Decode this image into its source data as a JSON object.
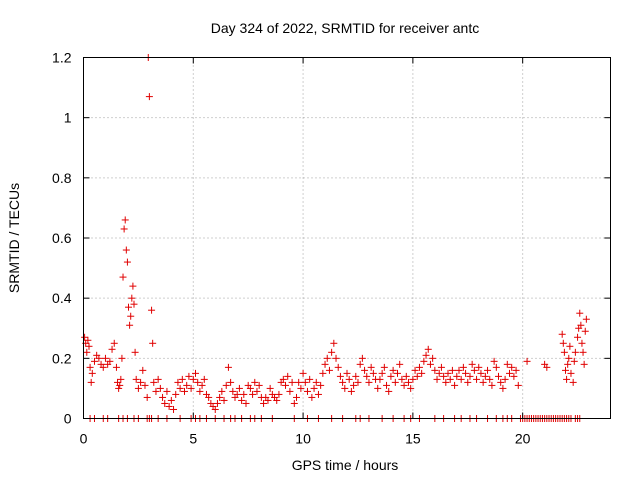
{
  "chart_data": {
    "type": "scatter",
    "title": "Day 324 of 2022, SRMTID for receiver antc",
    "xlabel": "GPS time / hours",
    "ylabel": "SRMTID / TECUs",
    "xlim": [
      0,
      24
    ],
    "ylim": [
      0,
      1.2
    ],
    "xticks": [
      0,
      5,
      10,
      15,
      20
    ],
    "xtick_labels": [
      "0",
      "5",
      "10",
      "15",
      "20"
    ],
    "yticks": [
      0,
      0.2,
      0.4,
      0.6,
      0.8,
      1.0,
      1.2
    ],
    "ytick_labels": [
      "0",
      "0.2",
      "0.4",
      "0.6",
      "0.8",
      "1",
      "1.2"
    ],
    "grid": true,
    "marker": "+",
    "color": "#e00000",
    "series": [
      {
        "name": "SRMTID",
        "points": [
          [
            0.05,
            0.27
          ],
          [
            0.1,
            0.25
          ],
          [
            0.15,
            0.22
          ],
          [
            0.2,
            0.26
          ],
          [
            0.25,
            0.24
          ],
          [
            0.3,
            0.17
          ],
          [
            0.35,
            0.12
          ],
          [
            0.4,
            0.15
          ],
          [
            0.5,
            0.19
          ],
          [
            0.6,
            0.21
          ],
          [
            0.7,
            0.2
          ],
          [
            0.8,
            0.18
          ],
          [
            0.9,
            0.17
          ],
          [
            1.0,
            0.2
          ],
          [
            1.1,
            0.18
          ],
          [
            1.2,
            0.19
          ],
          [
            1.3,
            0.23
          ],
          [
            1.4,
            0.25
          ],
          [
            1.5,
            0.17
          ],
          [
            1.55,
            0.12
          ],
          [
            1.6,
            0.1
          ],
          [
            1.65,
            0.11
          ],
          [
            1.7,
            0.13
          ],
          [
            1.75,
            0.2
          ],
          [
            1.8,
            0.47
          ],
          [
            1.85,
            0.63
          ],
          [
            1.9,
            0.66
          ],
          [
            1.95,
            0.56
          ],
          [
            2.0,
            0.52
          ],
          [
            2.05,
            0.37
          ],
          [
            2.1,
            0.31
          ],
          [
            2.15,
            0.34
          ],
          [
            2.2,
            0.4
          ],
          [
            2.25,
            0.44
          ],
          [
            2.3,
            0.38
          ],
          [
            2.35,
            0.22
          ],
          [
            2.4,
            0.13
          ],
          [
            2.5,
            0.1
          ],
          [
            2.6,
            0.12
          ],
          [
            2.7,
            0.16
          ],
          [
            2.8,
            0.11
          ],
          [
            2.9,
            0.07
          ],
          [
            2.95,
            1.2
          ],
          [
            3.0,
            1.07
          ],
          [
            3.1,
            0.36
          ],
          [
            3.15,
            0.25
          ],
          [
            3.2,
            0.12
          ],
          [
            3.3,
            0.09
          ],
          [
            3.4,
            0.13
          ],
          [
            3.5,
            0.1
          ],
          [
            3.6,
            0.07
          ],
          [
            3.7,
            0.05
          ],
          [
            3.8,
            0.09
          ],
          [
            3.9,
            0.04
          ],
          [
            4.0,
            0.06
          ],
          [
            4.1,
            0.03
          ],
          [
            4.2,
            0.08
          ],
          [
            4.3,
            0.12
          ],
          [
            4.4,
            0.1
          ],
          [
            4.5,
            0.13
          ],
          [
            4.6,
            0.09
          ],
          [
            4.7,
            0.11
          ],
          [
            4.8,
            0.14
          ],
          [
            4.9,
            0.1
          ],
          [
            5.0,
            0.13
          ],
          [
            5.1,
            0.15
          ],
          [
            5.2,
            0.12
          ],
          [
            5.3,
            0.09
          ],
          [
            5.4,
            0.11
          ],
          [
            5.5,
            0.13
          ],
          [
            5.6,
            0.08
          ],
          [
            5.7,
            0.07
          ],
          [
            5.8,
            0.05
          ],
          [
            5.9,
            0.04
          ],
          [
            6.0,
            0.03
          ],
          [
            6.1,
            0.05
          ],
          [
            6.2,
            0.07
          ],
          [
            6.3,
            0.09
          ],
          [
            6.4,
            0.06
          ],
          [
            6.5,
            0.11
          ],
          [
            6.6,
            0.17
          ],
          [
            6.7,
            0.12
          ],
          [
            6.8,
            0.09
          ],
          [
            6.9,
            0.07
          ],
          [
            7.0,
            0.08
          ],
          [
            7.1,
            0.1
          ],
          [
            7.2,
            0.06
          ],
          [
            7.3,
            0.08
          ],
          [
            7.4,
            0.05
          ],
          [
            7.5,
            0.11
          ],
          [
            7.6,
            0.1
          ],
          [
            7.7,
            0.08
          ],
          [
            7.8,
            0.12
          ],
          [
            7.9,
            0.09
          ],
          [
            8.0,
            0.11
          ],
          [
            8.1,
            0.07
          ],
          [
            8.2,
            0.05
          ],
          [
            8.3,
            0.07
          ],
          [
            8.4,
            0.06
          ],
          [
            8.5,
            0.1
          ],
          [
            8.6,
            0.08
          ],
          [
            8.7,
            0.07
          ],
          [
            8.8,
            0.06
          ],
          [
            8.9,
            0.08
          ],
          [
            9.0,
            0.12
          ],
          [
            9.1,
            0.13
          ],
          [
            9.2,
            0.11
          ],
          [
            9.3,
            0.14
          ],
          [
            9.4,
            0.09
          ],
          [
            9.5,
            0.12
          ],
          [
            9.6,
            0.05
          ],
          [
            9.7,
            0.07
          ],
          [
            9.8,
            0.12
          ],
          [
            9.9,
            0.1
          ],
          [
            10.0,
            0.15
          ],
          [
            10.1,
            0.12
          ],
          [
            10.2,
            0.09
          ],
          [
            10.3,
            0.13
          ],
          [
            10.4,
            0.07
          ],
          [
            10.5,
            0.1
          ],
          [
            10.6,
            0.12
          ],
          [
            10.7,
            0.08
          ],
          [
            10.8,
            0.11
          ],
          [
            10.9,
            0.15
          ],
          [
            11.0,
            0.18
          ],
          [
            11.1,
            0.2
          ],
          [
            11.2,
            0.16
          ],
          [
            11.3,
            0.22
          ],
          [
            11.4,
            0.25
          ],
          [
            11.5,
            0.2
          ],
          [
            11.6,
            0.17
          ],
          [
            11.7,
            0.14
          ],
          [
            11.8,
            0.12
          ],
          [
            11.9,
            0.1
          ],
          [
            12.0,
            0.15
          ],
          [
            12.1,
            0.13
          ],
          [
            12.2,
            0.09
          ],
          [
            12.3,
            0.11
          ],
          [
            12.4,
            0.14
          ],
          [
            12.5,
            0.12
          ],
          [
            12.6,
            0.18
          ],
          [
            12.7,
            0.2
          ],
          [
            12.8,
            0.16
          ],
          [
            12.9,
            0.14
          ],
          [
            13.0,
            0.12
          ],
          [
            13.1,
            0.17
          ],
          [
            13.2,
            0.15
          ],
          [
            13.3,
            0.13
          ],
          [
            13.4,
            0.1
          ],
          [
            13.5,
            0.13
          ],
          [
            13.6,
            0.15
          ],
          [
            13.7,
            0.17
          ],
          [
            13.8,
            0.11
          ],
          [
            13.9,
            0.09
          ],
          [
            14.0,
            0.14
          ],
          [
            14.1,
            0.16
          ],
          [
            14.2,
            0.12
          ],
          [
            14.3,
            0.15
          ],
          [
            14.4,
            0.18
          ],
          [
            14.5,
            0.13
          ],
          [
            14.6,
            0.11
          ],
          [
            14.7,
            0.14
          ],
          [
            14.8,
            0.12
          ],
          [
            14.9,
            0.1
          ],
          [
            15.0,
            0.13
          ],
          [
            15.1,
            0.16
          ],
          [
            15.2,
            0.14
          ],
          [
            15.3,
            0.17
          ],
          [
            15.4,
            0.15
          ],
          [
            15.5,
            0.19
          ],
          [
            15.6,
            0.21
          ],
          [
            15.7,
            0.23
          ],
          [
            15.8,
            0.18
          ],
          [
            15.9,
            0.2
          ],
          [
            16.0,
            0.16
          ],
          [
            16.1,
            0.13
          ],
          [
            16.2,
            0.15
          ],
          [
            16.3,
            0.17
          ],
          [
            16.4,
            0.14
          ],
          [
            16.5,
            0.12
          ],
          [
            16.6,
            0.15
          ],
          [
            16.7,
            0.13
          ],
          [
            16.8,
            0.16
          ],
          [
            16.9,
            0.11
          ],
          [
            17.0,
            0.14
          ],
          [
            17.1,
            0.16
          ],
          [
            17.2,
            0.13
          ],
          [
            17.3,
            0.17
          ],
          [
            17.4,
            0.15
          ],
          [
            17.5,
            0.12
          ],
          [
            17.6,
            0.14
          ],
          [
            17.7,
            0.18
          ],
          [
            17.8,
            0.16
          ],
          [
            17.9,
            0.13
          ],
          [
            18.0,
            0.17
          ],
          [
            18.1,
            0.15
          ],
          [
            18.2,
            0.12
          ],
          [
            18.3,
            0.14
          ],
          [
            18.4,
            0.16
          ],
          [
            18.5,
            0.13
          ],
          [
            18.6,
            0.11
          ],
          [
            18.7,
            0.19
          ],
          [
            18.8,
            0.17
          ],
          [
            18.9,
            0.14
          ],
          [
            19.0,
            0.12
          ],
          [
            19.1,
            0.1
          ],
          [
            19.2,
            0.13
          ],
          [
            19.3,
            0.18
          ],
          [
            19.4,
            0.15
          ],
          [
            19.5,
            0.17
          ],
          [
            19.6,
            0.14
          ],
          [
            19.7,
            0.16
          ],
          [
            19.8,
            0.11
          ],
          [
            20.2,
            0.19
          ],
          [
            21.0,
            0.18
          ],
          [
            21.1,
            0.17
          ],
          [
            21.8,
            0.28
          ],
          [
            21.85,
            0.25
          ],
          [
            21.9,
            0.22
          ],
          [
            21.95,
            0.16
          ],
          [
            22.0,
            0.13
          ],
          [
            22.05,
            0.18
          ],
          [
            22.1,
            0.2
          ],
          [
            22.15,
            0.24
          ],
          [
            22.2,
            0.15
          ],
          [
            22.3,
            0.12
          ],
          [
            22.35,
            0.19
          ],
          [
            22.4,
            0.22
          ],
          [
            22.5,
            0.27
          ],
          [
            22.55,
            0.3
          ],
          [
            22.6,
            0.35
          ],
          [
            22.65,
            0.31
          ],
          [
            22.7,
            0.25
          ],
          [
            22.75,
            0.22
          ],
          [
            22.8,
            0.18
          ],
          [
            22.85,
            0.29
          ],
          [
            22.9,
            0.33
          ]
        ],
        "zero_points_x": [
          0.3,
          0.5,
          0.9,
          1.1,
          1.6,
          1.8,
          2.0,
          2.3,
          2.5,
          2.9,
          3.0,
          3.1,
          3.4,
          3.8,
          4.4,
          4.9,
          5.1,
          5.3,
          5.6,
          6.0,
          6.4,
          6.7,
          6.9,
          7.2,
          7.6,
          7.8,
          8.1,
          8.6,
          9.6,
          10.2,
          10.7,
          11.3,
          11.8,
          12.4,
          12.6,
          13.0,
          13.6,
          14.1,
          14.6,
          14.9,
          15.3,
          16.0,
          16.4,
          16.9,
          17.2,
          17.6,
          17.9,
          18.4,
          18.8,
          19.1,
          19.3,
          19.5,
          19.9,
          20.0,
          20.1,
          20.2,
          20.3,
          20.4,
          20.5,
          20.6,
          20.7,
          20.8,
          20.9,
          21.0,
          21.1,
          21.2,
          21.3,
          21.4,
          21.5,
          21.6,
          21.7,
          21.8,
          21.9,
          22.0,
          22.1,
          22.2,
          22.4,
          22.5,
          22.6
        ]
      }
    ]
  }
}
